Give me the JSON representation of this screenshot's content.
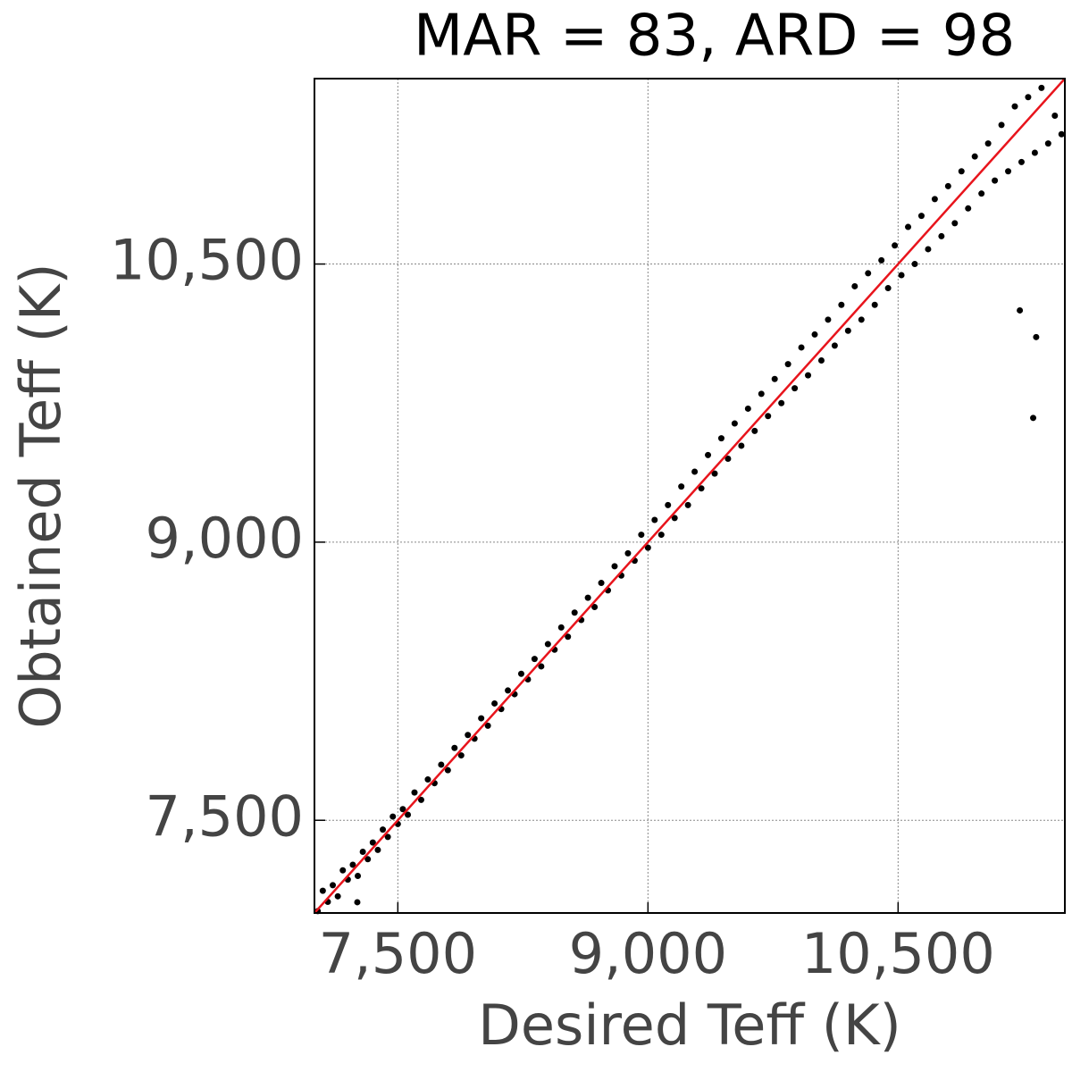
{
  "chart_data": {
    "type": "scatter",
    "title": "MAR = 83, ARD = 98",
    "x_label": "Desired Teff (K)",
    "y_label": "Obtained Teff (K)",
    "xlim": [
      7000,
      11500
    ],
    "ylim": [
      7000,
      11500
    ],
    "xticks": [
      {
        "value": 7500,
        "label": "7,500"
      },
      {
        "value": 9000,
        "label": "9,000"
      },
      {
        "value": 10500,
        "label": "10,500"
      }
    ],
    "yticks": [
      {
        "value": 7500,
        "label": "7,500"
      },
      {
        "value": 9000,
        "label": "9,000"
      },
      {
        "value": 10500,
        "label": "10,500"
      }
    ],
    "grid": true,
    "series": [
      {
        "type": "scatter",
        "color": "#000000",
        "x": [
          7020,
          7050,
          7080,
          7110,
          7140,
          7170,
          7200,
          7230,
          7260,
          7290,
          7320,
          7350,
          7380,
          7410,
          7440,
          7470,
          7500,
          7530,
          7560,
          7600,
          7640,
          7680,
          7720,
          7760,
          7800,
          7840,
          7880,
          7920,
          7960,
          8000,
          8040,
          8080,
          8120,
          8160,
          8200,
          8240,
          8280,
          8320,
          8360,
          8400,
          8440,
          8480,
          8520,
          8560,
          8600,
          8640,
          8680,
          8720,
          8760,
          8800,
          8840,
          8880,
          8920,
          8960,
          9000,
          9040,
          9080,
          9120,
          9160,
          9200,
          9240,
          9280,
          9320,
          9360,
          9400,
          9440,
          9480,
          9520,
          9560,
          9600,
          9640,
          9680,
          9720,
          9760,
          9800,
          9840,
          9880,
          9920,
          9960,
          10000,
          10040,
          10080,
          10120,
          10160,
          10200,
          10240,
          10280,
          10320,
          10360,
          10400,
          10440,
          10480,
          10520,
          10560,
          10600,
          10640,
          10680,
          10720,
          10760,
          10800,
          10840,
          10880,
          10920,
          10960,
          11000,
          11040,
          11080,
          11120,
          11160,
          11200,
          11240,
          11280,
          11320,
          11360,
          11400,
          11440,
          11480,
          11310,
          11328,
          11230,
          7257
        ],
        "values": [
          7010,
          7120,
          7060,
          7150,
          7090,
          7230,
          7180,
          7260,
          7200,
          7330,
          7290,
          7380,
          7340,
          7450,
          7410,
          7520,
          7480,
          7560,
          7530,
          7650,
          7610,
          7720,
          7700,
          7800,
          7770,
          7890,
          7850,
          7960,
          7940,
          8050,
          8010,
          8130,
          8100,
          8200,
          8180,
          8290,
          8260,
          8370,
          8330,
          8450,
          8420,
          8540,
          8490,
          8620,
          8580,
          8700,
          8650,
          8780,
          8740,
          8870,
          8820,
          8940,
          8900,
          9040,
          8970,
          9120,
          9040,
          9200,
          9130,
          9300,
          9200,
          9380,
          9290,
          9470,
          9370,
          9560,
          9450,
          9640,
          9520,
          9720,
          9600,
          9800,
          9680,
          9880,
          9750,
          9960,
          9830,
          10050,
          9900,
          10120,
          9980,
          10200,
          10060,
          10280,
          10140,
          10380,
          10200,
          10450,
          10280,
          10520,
          10370,
          10600,
          10440,
          10700,
          10500,
          10760,
          10580,
          10850,
          10650,
          10920,
          10720,
          11000,
          10800,
          11080,
          10880,
          11150,
          10950,
          11250,
          11000,
          11350,
          11050,
          11400,
          11100,
          11450,
          11150,
          11300,
          11200,
          9670,
          10106,
          10250,
          7058
        ]
      },
      {
        "type": "line",
        "color": "#e8141c",
        "x": [
          7000,
          11500
        ],
        "values": [
          7000,
          11500
        ]
      }
    ]
  }
}
